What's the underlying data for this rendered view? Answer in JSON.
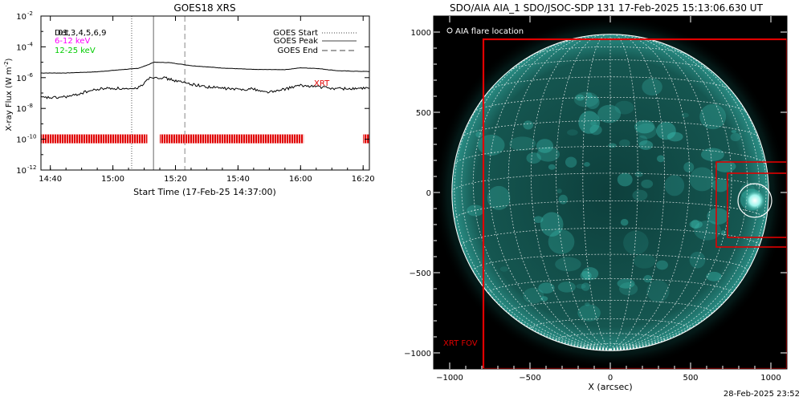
{
  "chart_data": [
    {
      "type": "line",
      "title": "GOES18 XRS",
      "xlabel": "Start Time (17-Feb-25 14:37:00)",
      "ylabel": "X-ray Flux (W m-2)",
      "ylabel_parts": {
        "text": "X-ray Flux (W m",
        "sup": "-2",
        "close": ")"
      },
      "yscale": "log",
      "ylim": [
        "1e-12",
        "1e-2"
      ],
      "x_range": [
        "14:37",
        "16:22"
      ],
      "x_ticks": [
        "14:40",
        "15:00",
        "15:20",
        "15:40",
        "16:00",
        "16:20"
      ],
      "y_ticks": [
        {
          "base": "10",
          "exp": "-2"
        },
        {
          "base": "10",
          "exp": "-4"
        },
        {
          "base": "10",
          "exp": "-6"
        },
        {
          "base": "10",
          "exp": "-8"
        },
        {
          "base": "10",
          "exp": "-10"
        },
        {
          "base": "10",
          "exp": "-12"
        }
      ],
      "channel_label_overprint": [
        "Det",
        "01,3,4,5,6,9"
      ],
      "energy_labels": [
        {
          "text": "6-12 keV",
          "color": "#ff00ff"
        },
        {
          "text": "12-25 keV",
          "color": "#00cc00"
        }
      ],
      "legend_placement": "top-right",
      "legend": [
        {
          "text": "GOES Start",
          "style": "dotted"
        },
        {
          "text": "GOES Peak",
          "style": "solid"
        },
        {
          "text": "GOES End",
          "style": "dashed"
        }
      ],
      "event_lines": {
        "start": "15:06",
        "peak": "15:13",
        "end": "15:23"
      },
      "series": [
        {
          "name": "upper channel",
          "x": [
            "14:37",
            "14:45",
            "14:55",
            "15:02",
            "15:08",
            "15:11",
            "15:13",
            "15:18",
            "15:25",
            "15:35",
            "15:45",
            "15:55",
            "16:00",
            "16:05",
            "16:12",
            "16:17",
            "16:22"
          ],
          "values": [
            2e-06,
            2e-06,
            2.4e-06,
            3.2e-06,
            4e-06,
            6.5e-06,
            1e-05,
            9.5e-06,
            6e-06,
            4.2e-06,
            3.4e-06,
            3.3e-06,
            4.3e-06,
            4e-06,
            2.8e-06,
            2.6e-06,
            2.5e-06
          ]
        },
        {
          "name": "lower channel",
          "x": [
            "14:37",
            "14:42",
            "14:47",
            "14:52",
            "14:57",
            "15:02",
            "15:06",
            "15:09",
            "15:11",
            "15:13",
            "15:16",
            "15:22",
            "15:30",
            "15:40",
            "15:45",
            "15:48",
            "15:52",
            "15:58",
            "16:00",
            "16:04",
            "16:10",
            "16:16",
            "16:22"
          ],
          "values": [
            5e-08,
            5e-08,
            6.5e-08,
            1.3e-07,
            2e-07,
            2e-07,
            1.6e-07,
            2.8e-07,
            8.5e-07,
            1.1e-06,
            1e-06,
            5e-07,
            2.5e-07,
            1.7e-07,
            1.9e-07,
            1.2e-07,
            1.25e-07,
            2.6e-07,
            3e-07,
            2.8e-07,
            2e-07,
            1.9e-07,
            2e-07
          ]
        }
      ],
      "xrt_label": "XRT",
      "xrt_coverage_level": "1e-10",
      "xrt_coverage_segments": [
        [
          "14:37",
          "15:11"
        ],
        [
          "15:15",
          "16:01"
        ],
        [
          "16:20",
          "16:22"
        ]
      ]
    },
    {
      "type": "image",
      "title": "SDO/AIA AIA_1 SDO/JSOC-SDP 131 17-Feb-2025 15:13:06.630 UT",
      "xlabel": "X (arcsec)",
      "x_ticks": [
        "-1000",
        "-500",
        "0",
        "500",
        "1000"
      ],
      "y_ticks": [
        "1000",
        "500",
        "0",
        "-500",
        "-1000"
      ],
      "xlim": [
        -1100,
        1100
      ],
      "ylim": [
        -1100,
        1100
      ],
      "solar_radius_arcsec": 986,
      "legend_text": "AIA flare location",
      "fov_label": "XRT FOV",
      "xrt_fov_box": {
        "x": [
          -790,
          1100
        ],
        "y": [
          -1100,
          955
        ]
      },
      "detail_boxes": [
        {
          "x": [
            660,
            1100
          ],
          "y": [
            -340,
            190
          ]
        },
        {
          "x": [
            730,
            1100
          ],
          "y": [
            -280,
            120
          ]
        }
      ],
      "flare_location": {
        "x": 900,
        "y": -50,
        "radius": 105
      },
      "grid_color": "#ffffff",
      "box_color": "#e00000",
      "disk_color": "#1e8f85"
    }
  ],
  "timestamp": "28-Feb-2025 23:52"
}
